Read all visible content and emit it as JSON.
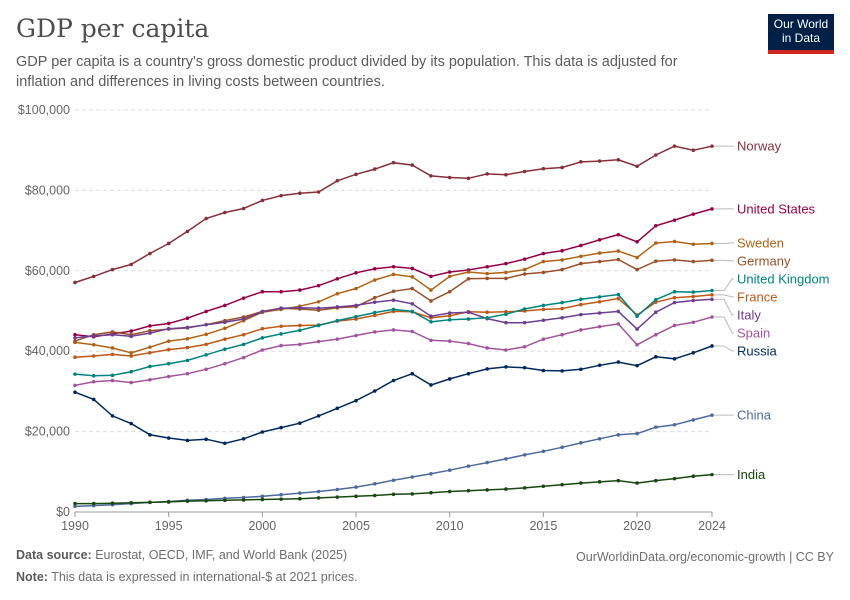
{
  "header": {
    "title": "GDP per capita",
    "subtitle": "GDP per capita is a country's gross domestic product divided by its population. This data is adjusted for inflation and differences in living costs between countries.",
    "logo_line1": "Our World",
    "logo_line2": "in Data"
  },
  "footer": {
    "source_label": "Data source:",
    "source_text": " Eurostat, OECD, IMF, and World Bank (2025)",
    "link_text": "OurWorldinData.org/economic-growth | CC BY",
    "note_label": "Note:",
    "note_text": " This data is expressed in international-$ at 2021 prices."
  },
  "chart_data": {
    "type": "line",
    "ylim": [
      0,
      100000
    ],
    "xlim": [
      1990,
      2024
    ],
    "y_ticks": [
      0,
      20000,
      40000,
      60000,
      80000,
      100000
    ],
    "y_tick_labels": [
      "$0",
      "$20,000",
      "$40,000",
      "$60,000",
      "$80,000",
      "$100,000"
    ],
    "x_ticks": [
      1990,
      1995,
      2000,
      2005,
      2010,
      2015,
      2020,
      2024
    ],
    "x_tick_labels": [
      "1990",
      "1995",
      "2000",
      "2005",
      "2010",
      "2015",
      "2020",
      "2024"
    ],
    "grid": "horizontal dashed",
    "legend": "right-end labels",
    "x": [
      1990,
      1991,
      1992,
      1993,
      1994,
      1995,
      1996,
      1997,
      1998,
      1999,
      2000,
      2001,
      2002,
      2003,
      2004,
      2005,
      2006,
      2007,
      2008,
      2009,
      2010,
      2011,
      2012,
      2013,
      2014,
      2015,
      2016,
      2017,
      2018,
      2019,
      2020,
      2021,
      2022,
      2023,
      2024
    ],
    "series": [
      {
        "name": "Norway",
        "color": "#883039",
        "values": [
          57100,
          58600,
          60300,
          61600,
          64300,
          66800,
          69800,
          73000,
          74500,
          75500,
          77500,
          78700,
          79300,
          79600,
          82400,
          84000,
          85300,
          86900,
          86300,
          83600,
          83200,
          83000,
          84100,
          83900,
          84700,
          85400,
          85700,
          87100,
          87300,
          87600,
          86000,
          88800,
          91000,
          90000,
          91000
        ]
      },
      {
        "name": "United States",
        "color": "#970046",
        "values": [
          44100,
          43600,
          44300,
          45000,
          46300,
          46900,
          48200,
          49900,
          51400,
          53200,
          54800,
          54800,
          55200,
          56300,
          58000,
          59500,
          60500,
          61000,
          60600,
          58600,
          59700,
          60200,
          61000,
          61800,
          62900,
          64300,
          65000,
          66300,
          67700,
          69000,
          67200,
          71200,
          72600,
          74100,
          75400
        ]
      },
      {
        "name": "Sweden",
        "color": "#b16214",
        "values": [
          42200,
          41600,
          40800,
          39600,
          41000,
          42500,
          43100,
          44200,
          45700,
          47600,
          49700,
          50400,
          51200,
          52300,
          54300,
          55600,
          57700,
          59100,
          58500,
          55200,
          58600,
          59700,
          59300,
          59600,
          60300,
          62300,
          62700,
          63600,
          64400,
          64900,
          63300,
          66900,
          67300,
          66600,
          66800
        ]
      },
      {
        "name": "Germany",
        "color": "#9a5129",
        "values": [
          42500,
          44100,
          44800,
          44100,
          45100,
          45500,
          45800,
          46600,
          47600,
          48500,
          49900,
          50700,
          50500,
          50200,
          50800,
          51100,
          53300,
          54900,
          55600,
          52500,
          54800,
          58000,
          58100,
          58100,
          59200,
          59600,
          60300,
          61800,
          62300,
          62800,
          60300,
          62400,
          62700,
          62300,
          62600
        ]
      },
      {
        "name": "France",
        "color": "#c05917",
        "values": [
          38500,
          38800,
          39200,
          38800,
          39600,
          40400,
          40900,
          41700,
          43000,
          44100,
          45600,
          46200,
          46400,
          46500,
          47500,
          48000,
          48900,
          49900,
          49800,
          48300,
          48800,
          49800,
          49700,
          49800,
          50000,
          50400,
          50600,
          51600,
          52300,
          53100,
          49000,
          52200,
          53300,
          53600,
          54000
        ]
      },
      {
        "name": "Italy",
        "color": "#6d3e91",
        "values": [
          43300,
          43800,
          44100,
          43700,
          44500,
          45600,
          45900,
          46600,
          47200,
          48000,
          49800,
          50700,
          50800,
          50700,
          51000,
          51400,
          52200,
          52700,
          51800,
          48700,
          49500,
          49700,
          48100,
          47100,
          47100,
          47700,
          48300,
          49100,
          49500,
          49900,
          45500,
          49700,
          52100,
          52600,
          52900
        ]
      },
      {
        "name": "United Kingdom",
        "color": "#00847e",
        "values": [
          34300,
          33900,
          34000,
          34900,
          36200,
          36900,
          37700,
          39100,
          40500,
          41700,
          43300,
          44300,
          45200,
          46400,
          47600,
          48600,
          49600,
          50400,
          49900,
          47300,
          47800,
          48000,
          48300,
          49200,
          50500,
          51400,
          52100,
          52900,
          53500,
          54100,
          48700,
          52800,
          54800,
          54700,
          55100
        ]
      },
      {
        "name": "Spain",
        "color": "#a2559c",
        "values": [
          31500,
          32400,
          32700,
          32200,
          32900,
          33700,
          34400,
          35500,
          36900,
          38400,
          40300,
          41400,
          41700,
          42400,
          43000,
          43900,
          44800,
          45300,
          44900,
          42700,
          42500,
          41900,
          40800,
          40300,
          41100,
          43000,
          44100,
          45300,
          46100,
          46800,
          41600,
          44100,
          46400,
          47200,
          48500
        ]
      },
      {
        "name": "Russia",
        "color": "#00295b",
        "values": [
          29800,
          28000,
          23900,
          22000,
          19200,
          18400,
          17800,
          18100,
          17100,
          18200,
          19900,
          21000,
          22100,
          23900,
          25800,
          27700,
          30100,
          32700,
          34400,
          31600,
          33100,
          34400,
          35600,
          36100,
          35900,
          35200,
          35100,
          35500,
          36500,
          37300,
          36400,
          38600,
          38100,
          39600,
          41300
        ]
      },
      {
        "name": "China",
        "color": "#4c6a9c",
        "values": [
          1400,
          1600,
          1800,
          2100,
          2400,
          2600,
          2900,
          3100,
          3400,
          3600,
          3900,
          4300,
          4700,
          5100,
          5600,
          6200,
          7000,
          7900,
          8700,
          9500,
          10400,
          11400,
          12300,
          13200,
          14200,
          15100,
          16100,
          17200,
          18200,
          19200,
          19500,
          21100,
          21700,
          22900,
          24100
        ]
      },
      {
        "name": "India",
        "color": "#18470f",
        "values": [
          2100,
          2100,
          2200,
          2300,
          2400,
          2500,
          2700,
          2800,
          2900,
          3000,
          3100,
          3200,
          3300,
          3500,
          3700,
          3900,
          4100,
          4400,
          4500,
          4800,
          5100,
          5300,
          5500,
          5700,
          6000,
          6400,
          6800,
          7200,
          7500,
          7800,
          7200,
          7800,
          8300,
          8900,
          9300
        ]
      }
    ]
  }
}
